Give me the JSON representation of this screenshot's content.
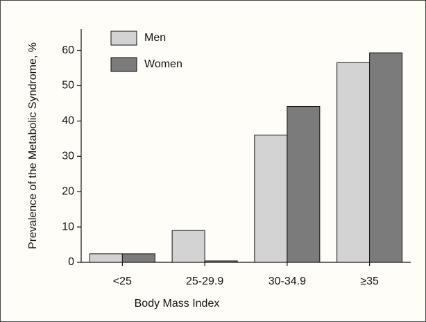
{
  "chart_data": {
    "type": "bar",
    "categories": [
      "<25",
      "25-29.9",
      "30-34.9",
      "≥35"
    ],
    "series": [
      {
        "name": "Men",
        "color": "#d3d3d3",
        "values": [
          2.4,
          9.0,
          36.0,
          56.5
        ]
      },
      {
        "name": "Women",
        "color": "#7b7b7b",
        "values": [
          2.4,
          0.4,
          44.1,
          59.3
        ]
      }
    ],
    "xlabel": "Body Mass Index",
    "ylabel": "Prevalence of the Metabolic Syndrome, %",
    "ylim": [
      0,
      66
    ],
    "yticks": [
      0,
      10,
      20,
      30,
      40,
      50,
      60
    ],
    "legend": "upper left"
  }
}
